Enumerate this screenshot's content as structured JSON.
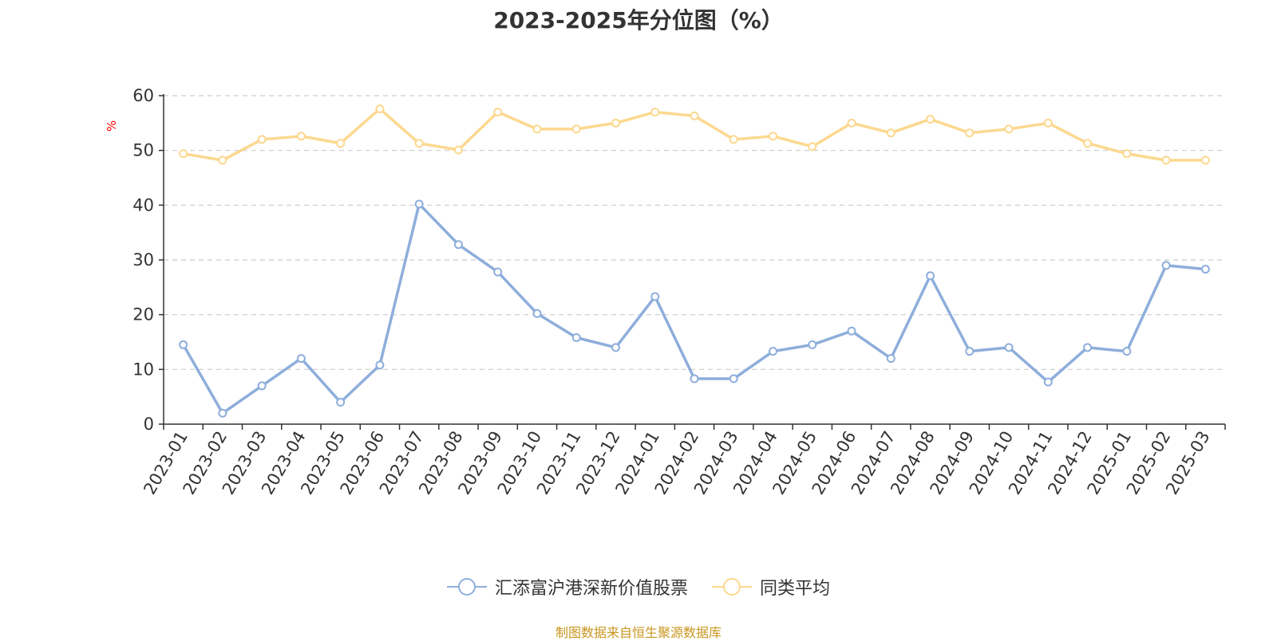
{
  "chart_data": {
    "type": "line",
    "title": "2023-2025年分位图（%）",
    "ylabel": "%",
    "xlabel": "",
    "ylim": [
      0,
      60
    ],
    "yticks": [
      0,
      10,
      20,
      30,
      40,
      50,
      60
    ],
    "grid": true,
    "legend_position": "bottom-center",
    "categories": [
      "2023-01",
      "2023-02",
      "2023-03",
      "2023-04",
      "2023-05",
      "2023-06",
      "2023-07",
      "2023-08",
      "2023-09",
      "2023-10",
      "2023-11",
      "2023-12",
      "2024-01",
      "2024-02",
      "2024-03",
      "2024-04",
      "2024-05",
      "2024-06",
      "2024-07",
      "2024-08",
      "2024-09",
      "2024-10",
      "2024-11",
      "2024-12",
      "2025-01",
      "2025-02",
      "2025-03"
    ],
    "series": [
      {
        "name": "汇添富沪港深新价值股票",
        "color": "#8eaedb",
        "values": [
          14.5,
          2,
          7,
          12,
          4,
          10.8,
          40.2,
          32.8,
          27.8,
          20.2,
          15.8,
          14,
          23.3,
          8.3,
          8.3,
          13.3,
          14.5,
          17,
          12,
          27.1,
          13.3,
          14,
          7.7,
          14,
          13.3,
          29,
          28.3
        ]
      },
      {
        "name": "同类平均",
        "color": "#fcd88f",
        "values": [
          49.4,
          48.2,
          52,
          52.6,
          51.3,
          57.6,
          51.3,
          50.1,
          57,
          53.9,
          53.9,
          55,
          57,
          56.3,
          52,
          52.6,
          50.7,
          55,
          53.2,
          55.7,
          53.2,
          53.9,
          55,
          51.3,
          49.4,
          48.2,
          48.2
        ]
      }
    ]
  },
  "footer": {
    "source": "制图数据来自恒生聚源数据库"
  }
}
